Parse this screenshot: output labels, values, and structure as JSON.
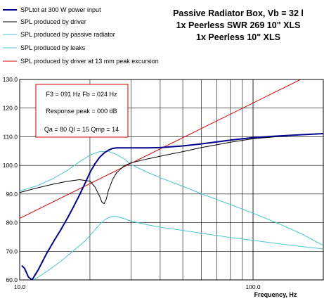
{
  "chart_data": {
    "type": "line",
    "title_lines": [
      "Passive Radiator Box, Vb = 32 l",
      "1x Peerless SWR 269 10\" XLS",
      "1x Peerless 10\" XLS"
    ],
    "xlabel": "Frequency, Hz",
    "ylabel": "",
    "x_scale": "log",
    "xlim": [
      10,
      200
    ],
    "ylim": [
      60,
      130
    ],
    "x_tick_labels": [
      {
        "value": 10,
        "label": "10.0"
      },
      {
        "value": 100,
        "label": "100.0"
      }
    ],
    "y_tick_labels": [
      {
        "value": 60,
        "label": "60.0"
      },
      {
        "value": 70,
        "label": "70.0"
      },
      {
        "value": 80,
        "label": "80.0"
      },
      {
        "value": 90,
        "label": "90.0"
      },
      {
        "value": 100,
        "label": "100.0"
      },
      {
        "value": 110,
        "label": "110.0"
      },
      {
        "value": 120,
        "label": "120.0"
      },
      {
        "value": 130,
        "label": "130.0"
      }
    ],
    "grid": true,
    "legend_position": "top-left",
    "annotation": {
      "line1": "F3 = 091 Hz  Fb = 024 Hz",
      "line2": "Response peak = 000 dB",
      "line3": "Qa = 80  Ql = 15  Qmp = 14"
    },
    "series": [
      {
        "name": "SPLtot at 300 W power input",
        "color": "#00008b",
        "width": 2,
        "x": [
          10.2,
          10.5,
          10.9,
          11.3,
          12,
          13,
          14,
          15,
          16,
          17,
          18,
          19,
          20,
          21,
          22,
          23,
          24,
          25,
          26,
          28,
          30,
          35,
          40,
          50,
          60,
          80,
          100,
          130,
          160,
          200
        ],
        "y": [
          65,
          64,
          61,
          60,
          63.5,
          69,
          73.5,
          77.5,
          81.5,
          85.5,
          89.5,
          93.5,
          97.5,
          100.5,
          102.8,
          104.3,
          105.3,
          105.9,
          106.1,
          106.1,
          106.1,
          106.1,
          106.2,
          106.8,
          107.5,
          108.8,
          109.7,
          110.3,
          110.7,
          111.1
        ]
      },
      {
        "name": "SPL produced by driver",
        "color": "#000000",
        "width": 1,
        "x": [
          10,
          12,
          14,
          16,
          18,
          20,
          21,
          22,
          22.5,
          23,
          23.5,
          24,
          25,
          26,
          28,
          30,
          35,
          40,
          50,
          60,
          80,
          100,
          130,
          160,
          200
        ],
        "y": [
          90.5,
          92.2,
          93.5,
          94.4,
          95,
          94.5,
          92.5,
          89.2,
          87.2,
          86.6,
          88.2,
          91.2,
          95,
          97.4,
          99.8,
          100.9,
          102.2,
          103.2,
          104.8,
          106.2,
          108.1,
          109.3,
          110.1,
          110.7,
          111.1
        ]
      },
      {
        "name": "SPL produced by passive radiator",
        "color": "#48c8c8",
        "width": 1,
        "x": [
          10,
          12,
          14,
          16,
          18,
          20,
          22,
          24,
          26,
          28,
          30,
          35,
          40,
          50,
          60,
          80,
          100,
          130,
          160,
          200
        ],
        "y": [
          91,
          93,
          95.5,
          98.3,
          101.2,
          103.6,
          104.8,
          104.9,
          103.8,
          102.3,
          100.3,
          97.7,
          95.7,
          92.7,
          90.1,
          86.3,
          83.3,
          79.5,
          76.2,
          72
        ]
      },
      {
        "name": "SPL produced by leaks",
        "color": "#48c8c8",
        "width": 1,
        "x": [
          11.5,
          13,
          15,
          17,
          19,
          20,
          21,
          22,
          23,
          24,
          25,
          26,
          28,
          30,
          35,
          40,
          50,
          60,
          80,
          100,
          130,
          160,
          200
        ],
        "y": [
          60,
          62.8,
          66.5,
          70.2,
          73.5,
          75.5,
          77.5,
          79.3,
          80.8,
          81.7,
          82.2,
          82.2,
          81.4,
          80.5,
          79.3,
          78.4,
          77.3,
          76.3,
          74.8,
          73.8,
          72.6,
          71.7,
          70.8
        ]
      },
      {
        "name": "SPL produced by driver at 13 mm peak excursion",
        "color": "#d20000",
        "width": 1,
        "x": [
          10,
          160
        ],
        "y": [
          81.5,
          130
        ]
      }
    ]
  }
}
